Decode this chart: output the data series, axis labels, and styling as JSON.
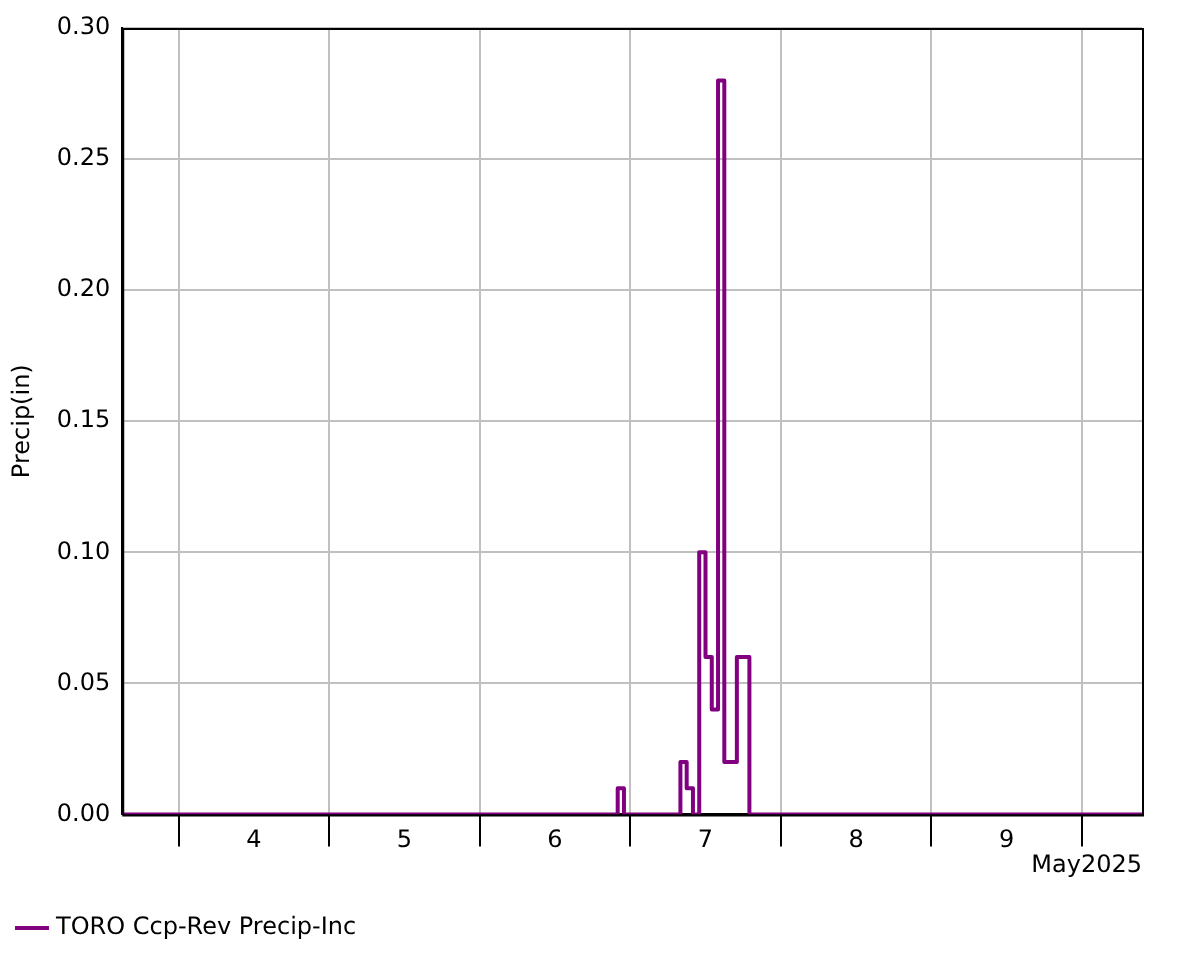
{
  "chart_data": {
    "type": "step",
    "xlabel": "May2025",
    "ylabel": "Precip(in)",
    "x": [
      "2025-05-03T15:00",
      "2025-05-06T22:00",
      "2025-05-06T23:00",
      "2025-05-07T08:00",
      "2025-05-07T09:00",
      "2025-05-07T10:00",
      "2025-05-07T11:00",
      "2025-05-07T12:00",
      "2025-05-07T13:00",
      "2025-05-07T14:00",
      "2025-05-07T15:00",
      "2025-05-07T17:00",
      "2025-05-07T19:00",
      "2025-05-10T09:36"
    ],
    "series": [
      {
        "name": "TORO Ccp-Rev Precip-Inc",
        "color": "#800080",
        "values": [
          0,
          0.01,
          0,
          0.02,
          0.01,
          0,
          0.1,
          0.06,
          0.04,
          0.28,
          0.02,
          0.06,
          0,
          0
        ]
      }
    ],
    "xlim": [
      "2025-05-03T15:00",
      "2025-05-10T09:36"
    ],
    "xticks": [
      {
        "value": "2025-05-04T00:00",
        "label": null
      },
      {
        "value": "2025-05-04T12:00",
        "label": "4"
      },
      {
        "value": "2025-05-05T00:00",
        "label": null
      },
      {
        "value": "2025-05-05T12:00",
        "label": "5"
      },
      {
        "value": "2025-05-06T00:00",
        "label": null
      },
      {
        "value": "2025-05-06T12:00",
        "label": "6"
      },
      {
        "value": "2025-05-07T00:00",
        "label": null
      },
      {
        "value": "2025-05-07T12:00",
        "label": "7"
      },
      {
        "value": "2025-05-08T00:00",
        "label": null
      },
      {
        "value": "2025-05-08T12:00",
        "label": "8"
      },
      {
        "value": "2025-05-09T00:00",
        "label": null
      },
      {
        "value": "2025-05-09T12:00",
        "label": "9"
      },
      {
        "value": "2025-05-10T00:00",
        "label": null
      }
    ],
    "ylim": [
      0,
      0.3
    ],
    "yticks": [
      {
        "value": 0,
        "label": "0.00"
      },
      {
        "value": 0.05,
        "label": "0.05"
      },
      {
        "value": 0.1,
        "label": "0.10"
      },
      {
        "value": 0.15,
        "label": "0.15"
      },
      {
        "value": 0.2,
        "label": "0.20"
      },
      {
        "value": 0.25,
        "label": "0.25"
      },
      {
        "value": 0.3,
        "label": "0.30"
      }
    ],
    "grid": true,
    "legend": "bottom left",
    "line_style": "solid",
    "marker": "none"
  }
}
